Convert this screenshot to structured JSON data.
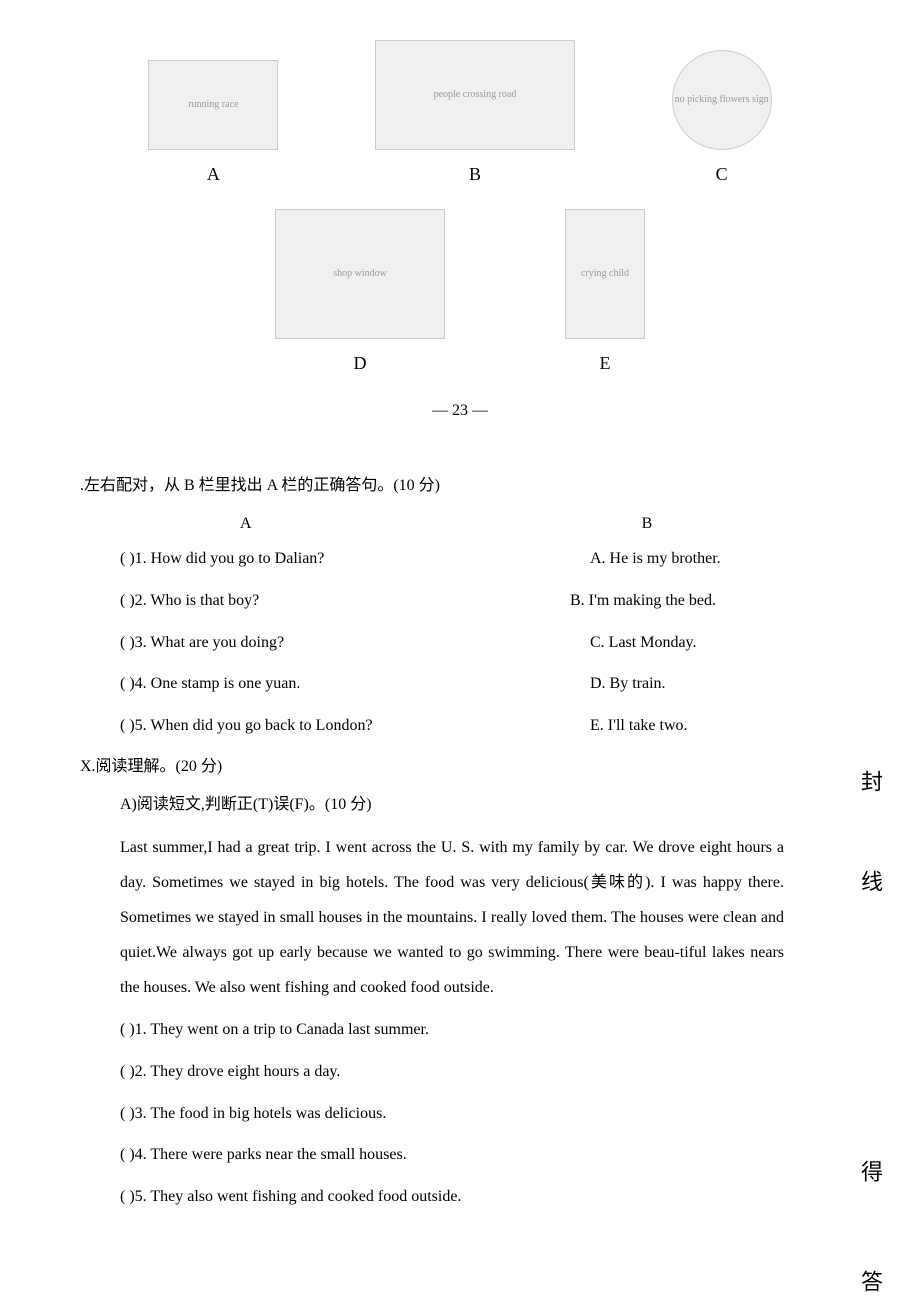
{
  "images_row1": {
    "a": {
      "label": "A",
      "alt": "running race"
    },
    "b": {
      "label": "B",
      "alt": "people crossing road"
    },
    "c": {
      "label": "C",
      "alt": "no picking flowers sign"
    }
  },
  "images_row2": {
    "d": {
      "label": "D",
      "alt": "shop window"
    },
    "e": {
      "label": "E",
      "alt": "crying child"
    }
  },
  "page_number": "— 23 —",
  "match_section": {
    "title": ".左右配对，从 B 栏里找出 A 栏的正确答句。(10 分)",
    "col_a_header": "A",
    "col_b_header": "B",
    "rows": [
      {
        "left": "(    )1. How did you go to Dalian?",
        "right": "A. He is my brother."
      },
      {
        "left": "(    )2. Who is that boy?",
        "right": "B. I'm making the bed."
      },
      {
        "left": "(    )3. What are you doing?",
        "right": "C. Last Monday."
      },
      {
        "left": "(    )4. One stamp is one yuan.",
        "right": "D. By train."
      },
      {
        "left": "(    )5. When did you go back to London?",
        "right": "E. I'll take two."
      }
    ]
  },
  "reading_section": {
    "title": "X.阅读理解。(20 分)",
    "sub_a": "A)阅读短文,判断正(T)误(F)。(10 分)",
    "passage": "Last summer,I had a great trip. I went across the U. S. with my family by car. We drove eight hours a day. Sometimes we stayed in big hotels. The food was very delicious(美味的). I was happy there. Sometimes we stayed in small houses in the mountains. I really loved them. The houses were clean and quiet.We always got up early because we wanted to go swimming. There were beau-tiful lakes nears the houses. We also went fishing and cooked food outside.",
    "tf_items": [
      "(    )1. They went on a trip to Canada last summer.",
      "(    )2. They drove eight hours a day.",
      "(    )3. The food in big hotels was delicious.",
      "(    )4. There were parks near the small houses.",
      "(    )5. They also went fishing and cooked food outside."
    ]
  },
  "side_chars": {
    "c1": "封",
    "c2": "线",
    "c3": "得",
    "c4": "答"
  },
  "colors": {
    "background": "#ffffff",
    "text": "#000000"
  }
}
